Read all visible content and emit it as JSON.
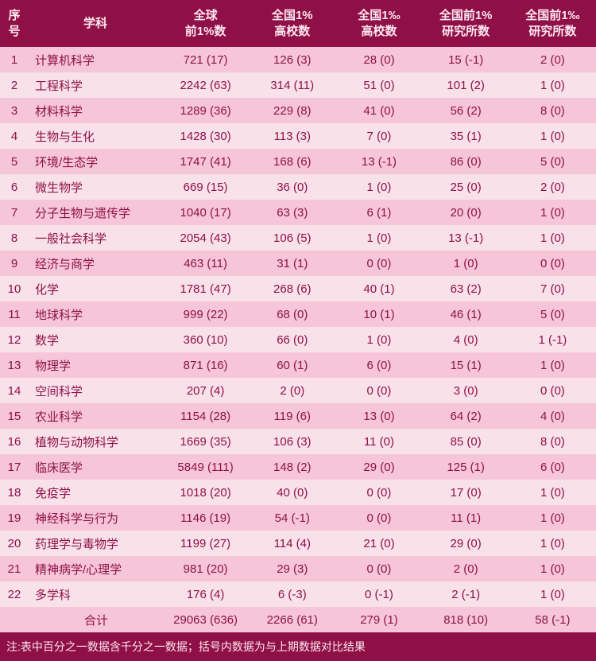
{
  "colors": {
    "header_bg": "#8f1046",
    "header_fg": "#ffe6f0",
    "row_odd": "#f6c6d8",
    "row_even": "#f9e1ea",
    "cell_fg": "#8f1046",
    "watermark": "rgba(130,130,130,0.12)"
  },
  "watermark_text": "软科",
  "columns": [
    {
      "key": "num",
      "label": "序\n号"
    },
    {
      "key": "subj",
      "label": "学科"
    },
    {
      "key": "c1",
      "label": "全球\n前1%数"
    },
    {
      "key": "c2",
      "label": "全国1%\n高校数"
    },
    {
      "key": "c3",
      "label": "全国1‰\n高校数"
    },
    {
      "key": "c4",
      "label": "全国前1%\n研究所数"
    },
    {
      "key": "c5",
      "label": "全国前1‰\n研究所数"
    }
  ],
  "rows": [
    {
      "num": "1",
      "subj": "计算机科学",
      "c1": "721 (17)",
      "c2": "126 (3)",
      "c3": "28 (0)",
      "c4": "15 (-1)",
      "c5": "2 (0)"
    },
    {
      "num": "2",
      "subj": "工程科学",
      "c1": "2242 (63)",
      "c2": "314 (11)",
      "c3": "51 (0)",
      "c4": "101 (2)",
      "c5": "1 (0)"
    },
    {
      "num": "3",
      "subj": "材料科学",
      "c1": "1289 (36)",
      "c2": "229 (8)",
      "c3": "41 (0)",
      "c4": "56 (2)",
      "c5": "8 (0)"
    },
    {
      "num": "4",
      "subj": "生物与生化",
      "c1": "1428 (30)",
      "c2": "113 (3)",
      "c3": "7 (0)",
      "c4": "35 (1)",
      "c5": "1 (0)"
    },
    {
      "num": "5",
      "subj": "环境/生态学",
      "c1": "1747 (41)",
      "c2": "168 (6)",
      "c3": "13 (-1)",
      "c4": "86 (0)",
      "c5": "5 (0)"
    },
    {
      "num": "6",
      "subj": "微生物学",
      "c1": "669 (15)",
      "c2": "36 (0)",
      "c3": "1 (0)",
      "c4": "25 (0)",
      "c5": "2 (0)"
    },
    {
      "num": "7",
      "subj": "分子生物与遗传学",
      "c1": "1040 (17)",
      "c2": "63 (3)",
      "c3": "6 (1)",
      "c4": "20 (0)",
      "c5": "1 (0)"
    },
    {
      "num": "8",
      "subj": "一般社会科学",
      "c1": "2054 (43)",
      "c2": "106 (5)",
      "c3": "1 (0)",
      "c4": "13 (-1)",
      "c5": "1 (0)"
    },
    {
      "num": "9",
      "subj": "经济与商学",
      "c1": "463 (11)",
      "c2": "31 (1)",
      "c3": "0 (0)",
      "c4": "1 (0)",
      "c5": "0 (0)"
    },
    {
      "num": "10",
      "subj": "化学",
      "c1": "1781 (47)",
      "c2": "268 (6)",
      "c3": "40 (1)",
      "c4": "63 (2)",
      "c5": "7 (0)"
    },
    {
      "num": "11",
      "subj": "地球科学",
      "c1": "999 (22)",
      "c2": "68 (0)",
      "c3": "10 (1)",
      "c4": "46 (1)",
      "c5": "5 (0)"
    },
    {
      "num": "12",
      "subj": "数学",
      "c1": "360 (10)",
      "c2": "66 (0)",
      "c3": "1 (0)",
      "c4": "4 (0)",
      "c5": "1 (-1)"
    },
    {
      "num": "13",
      "subj": "物理学",
      "c1": "871 (16)",
      "c2": "60 (1)",
      "c3": "6 (0)",
      "c4": "15 (1)",
      "c5": "1 (0)"
    },
    {
      "num": "14",
      "subj": "空间科学",
      "c1": "207 (4)",
      "c2": "2 (0)",
      "c3": "0 (0)",
      "c4": "3 (0)",
      "c5": "0 (0)"
    },
    {
      "num": "15",
      "subj": "农业科学",
      "c1": "1154 (28)",
      "c2": "119 (6)",
      "c3": "13 (0)",
      "c4": "64 (2)",
      "c5": "4 (0)"
    },
    {
      "num": "16",
      "subj": "植物与动物科学",
      "c1": "1669 (35)",
      "c2": "106 (3)",
      "c3": "11 (0)",
      "c4": "85 (0)",
      "c5": "8 (0)"
    },
    {
      "num": "17",
      "subj": "临床医学",
      "c1": "5849 (111)",
      "c2": "148 (2)",
      "c3": "29 (0)",
      "c4": "125 (1)",
      "c5": "6 (0)"
    },
    {
      "num": "18",
      "subj": "免疫学",
      "c1": "1018 (20)",
      "c2": "40 (0)",
      "c3": "0 (0)",
      "c4": "17 (0)",
      "c5": "1 (0)"
    },
    {
      "num": "19",
      "subj": "神经科学与行为",
      "c1": "1146 (19)",
      "c2": "54 (-1)",
      "c3": "0 (0)",
      "c4": "11 (1)",
      "c5": "1 (0)"
    },
    {
      "num": "20",
      "subj": "药理学与毒物学",
      "c1": "1199 (27)",
      "c2": "114 (4)",
      "c3": "21 (0)",
      "c4": "29 (0)",
      "c5": "1 (0)"
    },
    {
      "num": "21",
      "subj": "精神病学/心理学",
      "c1": "981 (20)",
      "c2": "29 (3)",
      "c3": "0 (0)",
      "c4": "2 (0)",
      "c5": "1 (0)"
    },
    {
      "num": "22",
      "subj": "多学科",
      "c1": "176 (4)",
      "c2": "6 (-3)",
      "c3": "0 (-1)",
      "c4": "2 (-1)",
      "c5": "1 (0)"
    }
  ],
  "total": {
    "num": "",
    "subj": "合计",
    "c1": "29063 (636)",
    "c2": "2266 (61)",
    "c3": "279 (1)",
    "c4": "818 (10)",
    "c5": "58 (-1)"
  },
  "footnote": "注:表中百分之一数据含千分之一数据；括号内数据为与上期数据对比结果"
}
